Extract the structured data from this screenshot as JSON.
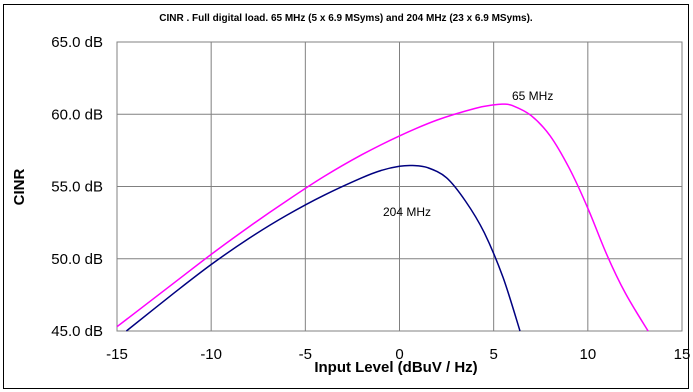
{
  "chart_data": {
    "type": "line",
    "title": "CINR .  Full digital load.    65 MHz (5  x 6.9 MSyms) and 204 MHz (23 x 6.9 MSyms).",
    "xlabel": "Input Level (dBuV / Hz)",
    "ylabel": "CINR",
    "xlim": [
      -15,
      15
    ],
    "ylim": [
      45,
      65
    ],
    "x_ticks": [
      "-15",
      "-10",
      "-5",
      "0",
      "5",
      "10",
      "15"
    ],
    "y_ticks": [
      "45.0 dB",
      "50.0 dB",
      "55.0 dB",
      "60.0 dB",
      "65.0 dB"
    ],
    "grid": true,
    "series": [
      {
        "name": "65 MHz",
        "color": "#ff00ff",
        "x": [
          -15,
          -12,
          -10,
          -8,
          -6,
          -4,
          -2,
          0,
          2,
          4,
          5,
          5.5,
          6,
          7,
          8,
          9,
          10,
          11,
          12,
          13.2
        ],
        "y": [
          45.3,
          48.3,
          50.3,
          52.2,
          54.0,
          55.7,
          57.2,
          58.5,
          59.6,
          60.4,
          60.65,
          60.7,
          60.6,
          59.9,
          58.5,
          56.3,
          53.5,
          50.3,
          47.6,
          45.0
        ]
      },
      {
        "name": "204 MHz",
        "color": "#000080",
        "x": [
          -14.5,
          -12,
          -10,
          -8,
          -6,
          -4,
          -2,
          -1,
          0,
          0.7,
          1.5,
          2.5,
          3.5,
          4.5,
          5.5,
          6.4
        ],
        "y": [
          45.0,
          47.6,
          49.6,
          51.4,
          53.0,
          54.4,
          55.6,
          56.1,
          56.4,
          56.45,
          56.3,
          55.6,
          54.0,
          51.8,
          48.7,
          45.0
        ]
      }
    ]
  }
}
